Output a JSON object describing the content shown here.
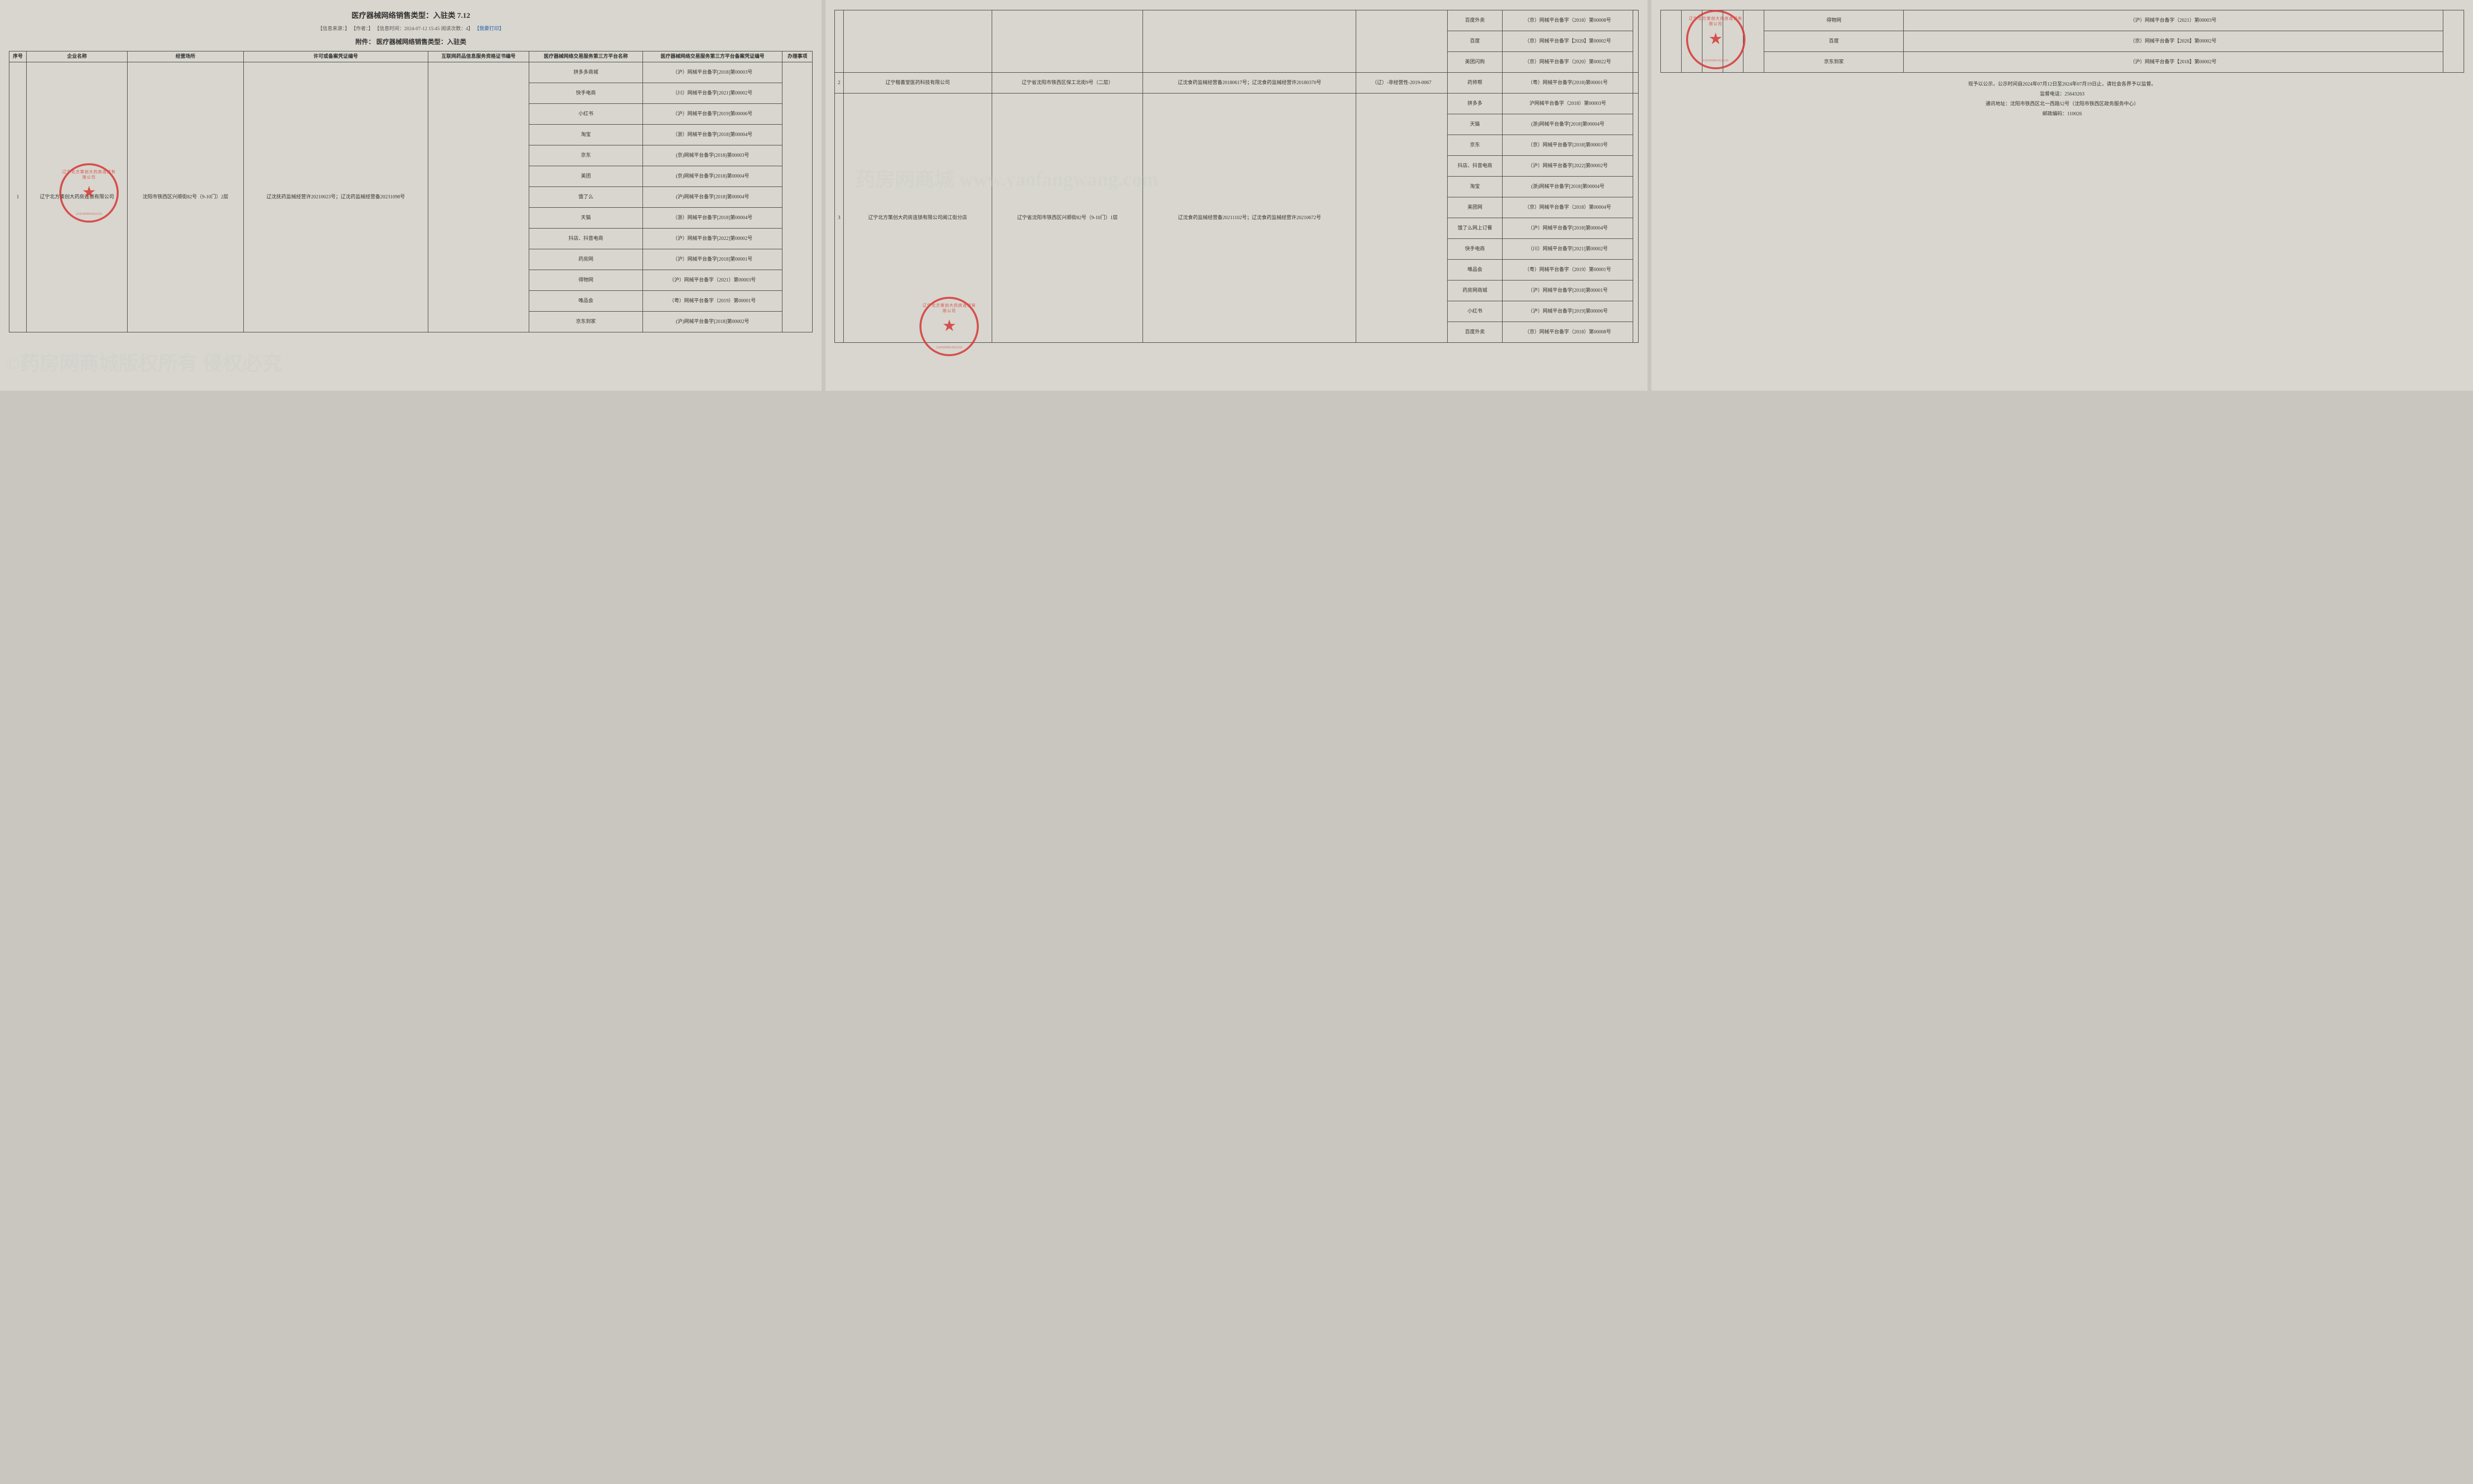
{
  "header": {
    "title": "医疗器械网络销售类型：入驻类 7.12",
    "meta": "【信息来源：】 【作者：】 【信息时间：2024-07-12 15:45 阅读次数：4】",
    "print": "【我要打印】",
    "attachment_title": "附件：  医疗器械网络销售类型：入驻类"
  },
  "columns": {
    "c0": "序号",
    "c1": "企业名称",
    "c2": "经营场所",
    "c3": "许可或备案凭证编号",
    "c4": "互联网药品信息服务资格证书编号",
    "c5": "医疗器械网络交易服务第三方平台名称",
    "c6": "医疗器械网络交易服务第三方平台备案凭证编号",
    "c7": "办理事项"
  },
  "row1": {
    "idx": "1",
    "company": "辽宁北方策创大药房连锁有限公司",
    "place": "沈阳市铁西区兴顺街82号（9-10门）2层",
    "license": "辽沈抚药监械经营许20210023号；辽沈药监械经营备20231098号"
  },
  "row2": {
    "idx": "2",
    "company": "辽宁楷善堂医药科技有限公司",
    "place": "辽宁省沈阳市铁西区保工北街9号（二层）",
    "license": "辽沈食药监械经营备20180617号；辽沈食药监械经营许20180370号",
    "info": "（辽）-非经营性-2019-0067"
  },
  "row3": {
    "idx": "3",
    "company": "辽宁北方策创大药房连锁有限公司闽江街分店",
    "place": "辽宁省沈阳市铁西区兴顺街82号（9-10门）1层",
    "license": "辽沈食药监械经营备20211102号；辽沈食药监械经营许20210672号"
  },
  "p1": [
    {
      "plat": "拼多多商城",
      "cert": "（沪）网械平台备字[2018]第00003号"
    },
    {
      "plat": "快手电商",
      "cert": "（川）网械平台备字[2021]第00002号"
    },
    {
      "plat": "小红书",
      "cert": "（沪）网械平台备字[2019]第00006号"
    },
    {
      "plat": "淘宝",
      "cert": "（浙）网械平台备字[2018]第00004号"
    },
    {
      "plat": "京东",
      "cert": "(京)网械平台备字(2018)第00003号"
    },
    {
      "plat": "美团",
      "cert": "(京)网械平台备字(2018)第00004号"
    },
    {
      "plat": "饿了么",
      "cert": "(沪)网械平台备字[2018]第00004号"
    },
    {
      "plat": "天猫",
      "cert": "（浙）网械平台备字[2018]第00004号"
    },
    {
      "plat": "抖店、抖音电商",
      "cert": "（沪）网械平台备字[2022]第00002号"
    },
    {
      "plat": "药房网",
      "cert": "（沪）网械平台备字[2018]第00001号"
    },
    {
      "plat": "得物网",
      "cert": "（沪）网械平台备字（2021）第00003号"
    },
    {
      "plat": "唯品会",
      "cert": "（粤）网械平台备字（2019）第00001号"
    },
    {
      "plat": "京东到家",
      "cert": "(沪)网械平台备字[2018]第00002号"
    }
  ],
  "p2top": [
    {
      "plat": "百度外卖",
      "cert": "（京）网械平台备字（2018）第00008号"
    },
    {
      "plat": "百度",
      "cert": "（京）网械平台备字【2020】第00002号"
    },
    {
      "plat": "美团闪购",
      "cert": "（京）网械平台备字（2020）第00022号"
    }
  ],
  "p2row2": {
    "plat": "药师帮",
    "cert": "（粤）网械平台备字(2018)第00001号"
  },
  "p2row3": [
    {
      "plat": "拼多多",
      "cert": "沪网械平台备字（2018）第00003号"
    },
    {
      "plat": "天猫",
      "cert": "(浙)网械平台备字[2018]第00004号"
    },
    {
      "plat": "京东",
      "cert": "（京）网械平台备字[2018]第00003号"
    },
    {
      "plat": "抖店、抖音电商",
      "cert": "（沪）网械平台备字[2022]第00002号"
    },
    {
      "plat": "淘宝",
      "cert": "(浙)网械平台备字[2018]第00004号"
    },
    {
      "plat": "美团网",
      "cert": "（京）网械平台备字（2018）第00004号"
    },
    {
      "plat": "饿了么网上订餐",
      "cert": "（沪）网械平台备字[2018]第00004号"
    },
    {
      "plat": "快手电商",
      "cert": "（川）网械平台备字[2021]第00002号"
    },
    {
      "plat": "唯品会",
      "cert": "（粤）网械平台备字（2019）第00001号"
    },
    {
      "plat": "药房网商城",
      "cert": "（沪）网械平台备字[2018]第00001号"
    },
    {
      "plat": "小红书",
      "cert": "（沪）网械平台备字[2019]第00006号"
    },
    {
      "plat": "百度外卖",
      "cert": "（京）网械平台备字（2018）第00008号"
    }
  ],
  "p3top": [
    {
      "plat": "得物网",
      "cert": "（沪）网械平台备字（2021）第00003号"
    },
    {
      "plat": "百度",
      "cert": "（京）网械平台备字【2020】第00002号"
    },
    {
      "plat": "京东到家",
      "cert": "（沪）网械平台备字【2018】第00002号"
    }
  ],
  "footer": {
    "l1": "现予以公示，公示时间自2024年07月12日至2024年07月19日止，请社会各界予以监督。",
    "l2": "监督电话：25643263",
    "l3": "通讯地址：沈阳市铁西区北一西路52号（沈阳市铁西区政务服务中心）",
    "l4": "邮政编码：110026"
  },
  "watermarks": {
    "w1": "©药房网商城版权所有 侵权必究",
    "w2": "药房网商城",
    "w2sub": "www.yaofangwang.com"
  },
  "stamp_text": "辽宁北方策创大药房连锁有限公司",
  "stamp_num": "210105001022235"
}
